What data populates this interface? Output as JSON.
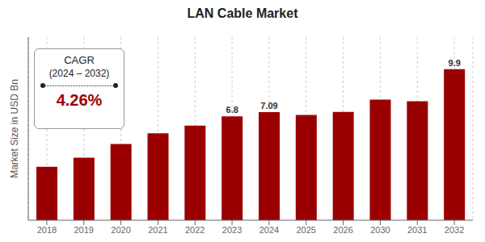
{
  "chart_data": {
    "type": "bar",
    "title": "LAN Cable Market",
    "ylabel": "Market Size in USD Bn",
    "categories": [
      "2018",
      "2019",
      "2020",
      "2021",
      "2022",
      "2023",
      "2024",
      "2025",
      "2026",
      "2030",
      "2031",
      "2032"
    ],
    "values": [
      3.5,
      4.1,
      5.0,
      5.7,
      6.2,
      6.8,
      7.09,
      6.9,
      7.1,
      7.9,
      7.8,
      9.9
    ],
    "value_labels": [
      null,
      null,
      null,
      null,
      null,
      "6.8",
      "7.09",
      null,
      null,
      null,
      null,
      "9.9"
    ],
    "color": "#9B0000",
    "ylim": [
      0,
      12
    ],
    "grid": true,
    "tick_labels": "x",
    "annotations": [
      "CAGR",
      "(2024 – 2032)",
      "4.26%"
    ]
  }
}
